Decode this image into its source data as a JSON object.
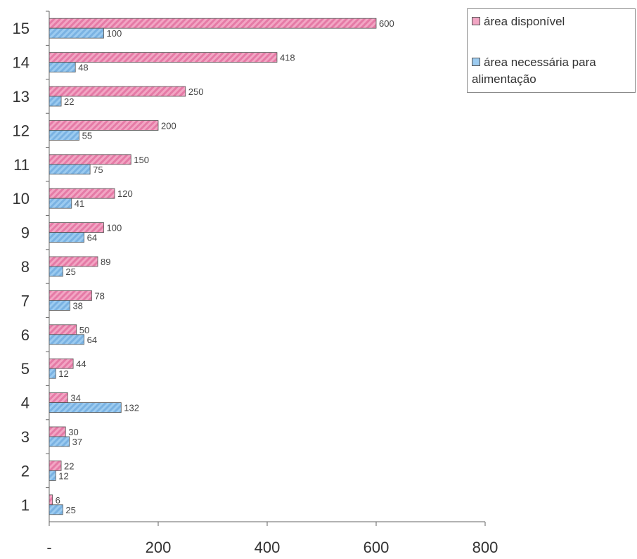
{
  "chart_data": {
    "type": "bar",
    "orientation": "horizontal",
    "categories": [
      "1",
      "2",
      "3",
      "4",
      "5",
      "6",
      "7",
      "8",
      "9",
      "10",
      "11",
      "12",
      "13",
      "14",
      "15"
    ],
    "series": [
      {
        "name": "área disponível",
        "color": "#e87fa8",
        "values": [
          6,
          22,
          30,
          34,
          44,
          50,
          78,
          89,
          100,
          120,
          150,
          200,
          250,
          418,
          600
        ],
        "labels": [
          "6",
          "22",
          "30",
          "34",
          "44",
          "50",
          "78",
          "89",
          "100",
          "120",
          "150",
          "200",
          "250",
          "418",
          "600"
        ]
      },
      {
        "name": "área necessária para alimentação",
        "color": "#7fb8e8",
        "values": [
          25,
          12,
          37,
          132,
          12,
          64,
          38,
          25,
          64,
          41,
          75,
          55,
          22,
          48,
          100
        ],
        "labels": [
          "25",
          "12",
          "37",
          "132",
          "12",
          "64",
          "38",
          "25",
          "64",
          "41",
          "75",
          "55",
          "22",
          "48",
          "100"
        ]
      }
    ],
    "x_ticks": [
      "-",
      "200",
      "400",
      "600",
      "800"
    ],
    "xlim": [
      0,
      800
    ],
    "grid": false,
    "legend_position": "top-right"
  }
}
